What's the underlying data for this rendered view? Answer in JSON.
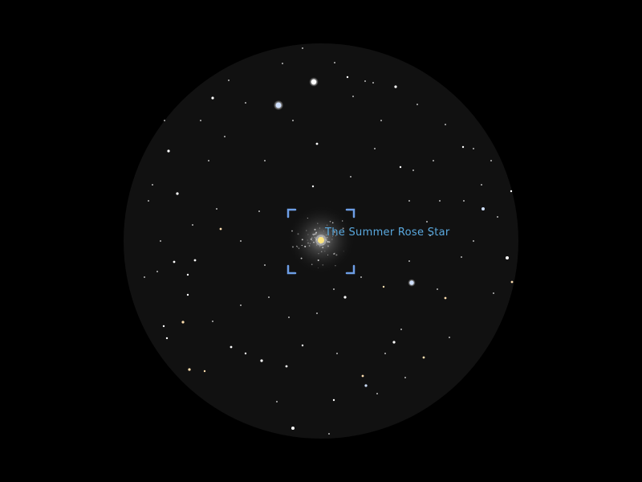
{
  "view": {
    "background_color": "#000000",
    "sky_disk_color": "#111111",
    "reticle_color": "#6d9ee6",
    "label_color": "#5aa9df"
  },
  "target": {
    "label": "The Summer Rose Star",
    "icon": "crosshair-brackets-icon"
  },
  "stars": {
    "colors": {
      "white": "#ffffff",
      "blue": "#cfe0ff",
      "warm": "#ffe0b0"
    }
  }
}
